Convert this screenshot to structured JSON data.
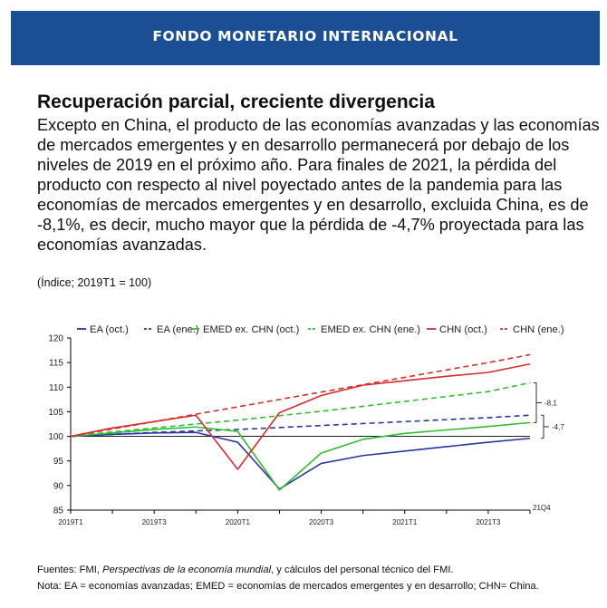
{
  "header": {
    "title": "FONDO MONETARIO INTERNACIONAL"
  },
  "headline": "Recuperación parcial, creciente divergencia",
  "body": "Excepto en China, el producto de las economías avanzadas y las economías de mercados emergentes y en desarrollo permanecerá por debajo de los niveles de 2019 en el próximo año. Para finales de 2021, la pérdida del producto con respecto al nivel poyectado antes de la pandemia para las economías de mercados emergentes y en desarrollo, excluida China, es de -8,1%, es decir, mucho mayor que la pérdida de -4,7% proyectada para las economías avanzadas.",
  "units": "(Índice; 2019T1 = 100)",
  "colors": {
    "banner": "#1a4f95",
    "ea": "#2b35a8",
    "emed": "#2fbf2f",
    "chn": "#d92b2b"
  },
  "chart_data": {
    "type": "line",
    "title": "",
    "x": [
      "2019T1",
      "2019T2",
      "2019T3",
      "2019T4",
      "2020T1",
      "2020T2",
      "2020T3",
      "2020T4",
      "2021T1",
      "2021T2",
      "2021T3",
      "2021T4"
    ],
    "x_tick_labels": [
      "2019T1",
      "2019T3",
      "2020T1",
      "2020T3",
      "2021T1",
      "2021T3"
    ],
    "x_tick_indices": [
      0,
      2,
      4,
      6,
      8,
      10
    ],
    "ylim": [
      85,
      120
    ],
    "y_ticks": [
      85,
      90,
      95,
      100,
      105,
      110,
      115,
      120
    ],
    "legend_position": "top",
    "series": [
      {
        "name": "EA (oct.)",
        "color": "#2b35a8",
        "dashed": false,
        "values": [
          100,
          100.4,
          100.7,
          100.8,
          98.8,
          89.3,
          94.5,
          96.1,
          97.0,
          97.9,
          98.8,
          99.6
        ]
      },
      {
        "name": "EA (ene.)",
        "color": "#2b35a8",
        "dashed": true,
        "values": [
          100,
          100.4,
          100.8,
          101.1,
          101.4,
          101.8,
          102.2,
          102.6,
          103.0,
          103.4,
          103.8,
          104.3
        ]
      },
      {
        "name": "EMED ex. CHN (oct.)",
        "color": "#2fbf2f",
        "dashed": false,
        "values": [
          100,
          100.7,
          101.4,
          101.9,
          101.0,
          89.1,
          96.6,
          99.4,
          100.6,
          101.3,
          102.0,
          102.8
        ]
      },
      {
        "name": "EMED ex. CHN (ene.)",
        "color": "#2fbf2f",
        "dashed": true,
        "values": [
          100,
          100.9,
          101.7,
          102.5,
          103.3,
          104.2,
          105.1,
          106.1,
          107.1,
          108.1,
          109.1,
          110.9
        ]
      },
      {
        "name": "CHN (oct.)",
        "color": "#d92b2b",
        "dashed": false,
        "values": [
          100,
          101.7,
          103.0,
          104.3,
          93.3,
          104.8,
          108.3,
          110.4,
          111.3,
          112.2,
          113.0,
          114.7
        ]
      },
      {
        "name": "CHN (ene.)",
        "color": "#d92b2b",
        "dashed": true,
        "values": [
          100,
          101.5,
          103.0,
          104.5,
          106.0,
          107.5,
          109.0,
          110.5,
          112.0,
          113.5,
          115.0,
          116.6
        ]
      }
    ],
    "annotations": [
      {
        "text": "-8,1",
        "from": 110.9,
        "to": 102.8
      },
      {
        "text": "-4,7",
        "from": 104.3,
        "to": 99.6
      },
      {
        "text": "21Q4"
      }
    ]
  },
  "sources": {
    "label": "Fuentes: FMI, ",
    "italic": "Perspectivas de la economía mundial",
    "rest": ", y cálculos del personal técnico del FMI."
  },
  "note": "Nota: EA = economías avanzadas; EMED = economías de mercados emergentes y en desarrollo; CHN= China."
}
